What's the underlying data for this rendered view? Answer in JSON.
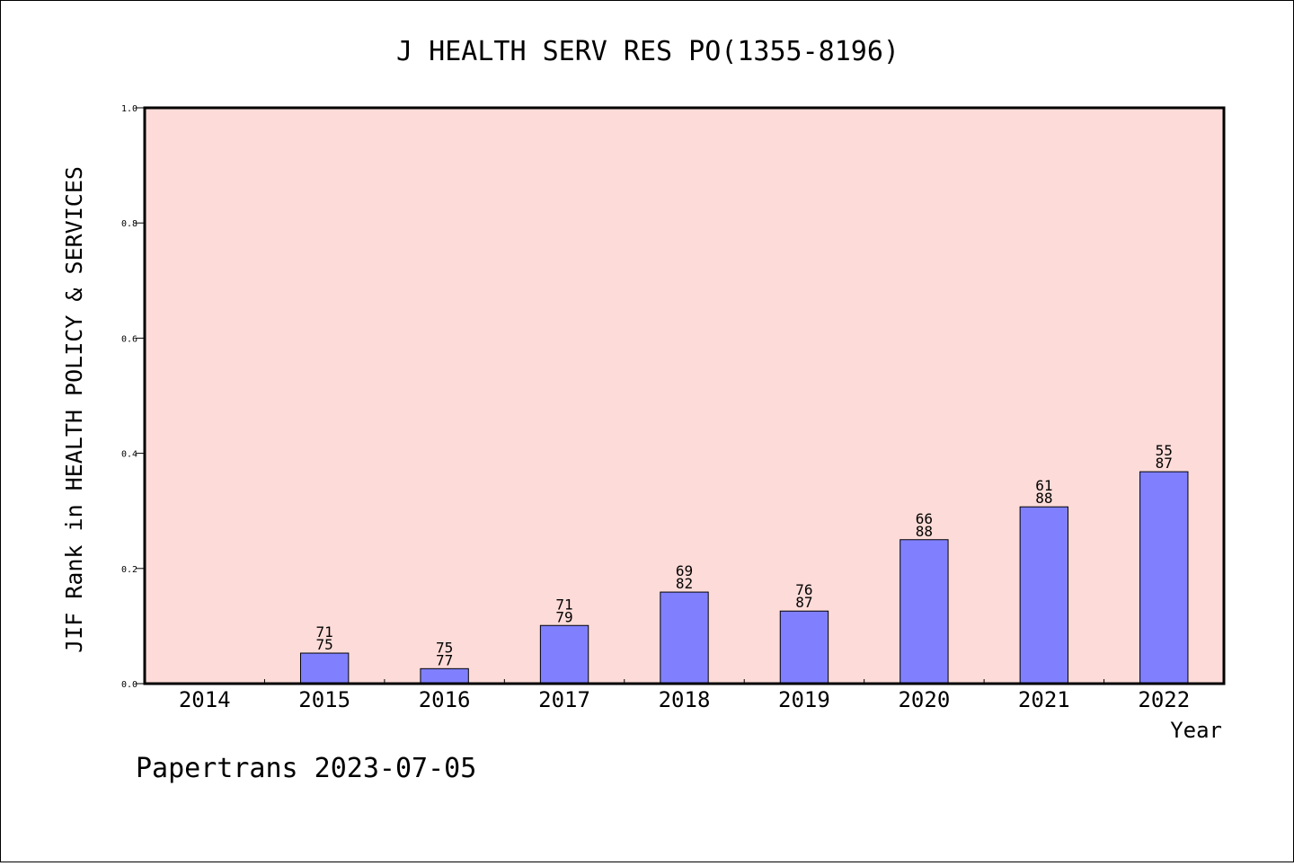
{
  "chart_data": {
    "type": "bar",
    "title": "J HEALTH SERV RES PO(1355-8196)",
    "xlabel": "Year",
    "ylabel": "JIF Rank in HEALTH POLICY & SERVICES",
    "ylim": [
      0,
      1.0
    ],
    "yticks": [
      "0.0",
      "0.2",
      "0.4",
      "0.6",
      "0.8",
      "1.0"
    ],
    "categories": [
      "2014",
      "2015",
      "2016",
      "2017",
      "2018",
      "2019",
      "2020",
      "2021",
      "2022"
    ],
    "values": [
      null,
      0.053,
      0.026,
      0.101,
      0.159,
      0.126,
      0.25,
      0.307,
      0.368
    ],
    "rank_labels": [
      null,
      "71",
      "75",
      "71",
      "69",
      "76",
      "66",
      "61",
      "55"
    ],
    "total_labels": [
      null,
      "75",
      "77",
      "79",
      "82",
      "87",
      "88",
      "88",
      "87"
    ],
    "grid": false,
    "colors": {
      "plot_background": "#fddbd8",
      "bar_fill": "#8080ff",
      "bar_stroke": "#000000"
    }
  },
  "footer": {
    "text": "Papertrans 2023-07-05"
  }
}
